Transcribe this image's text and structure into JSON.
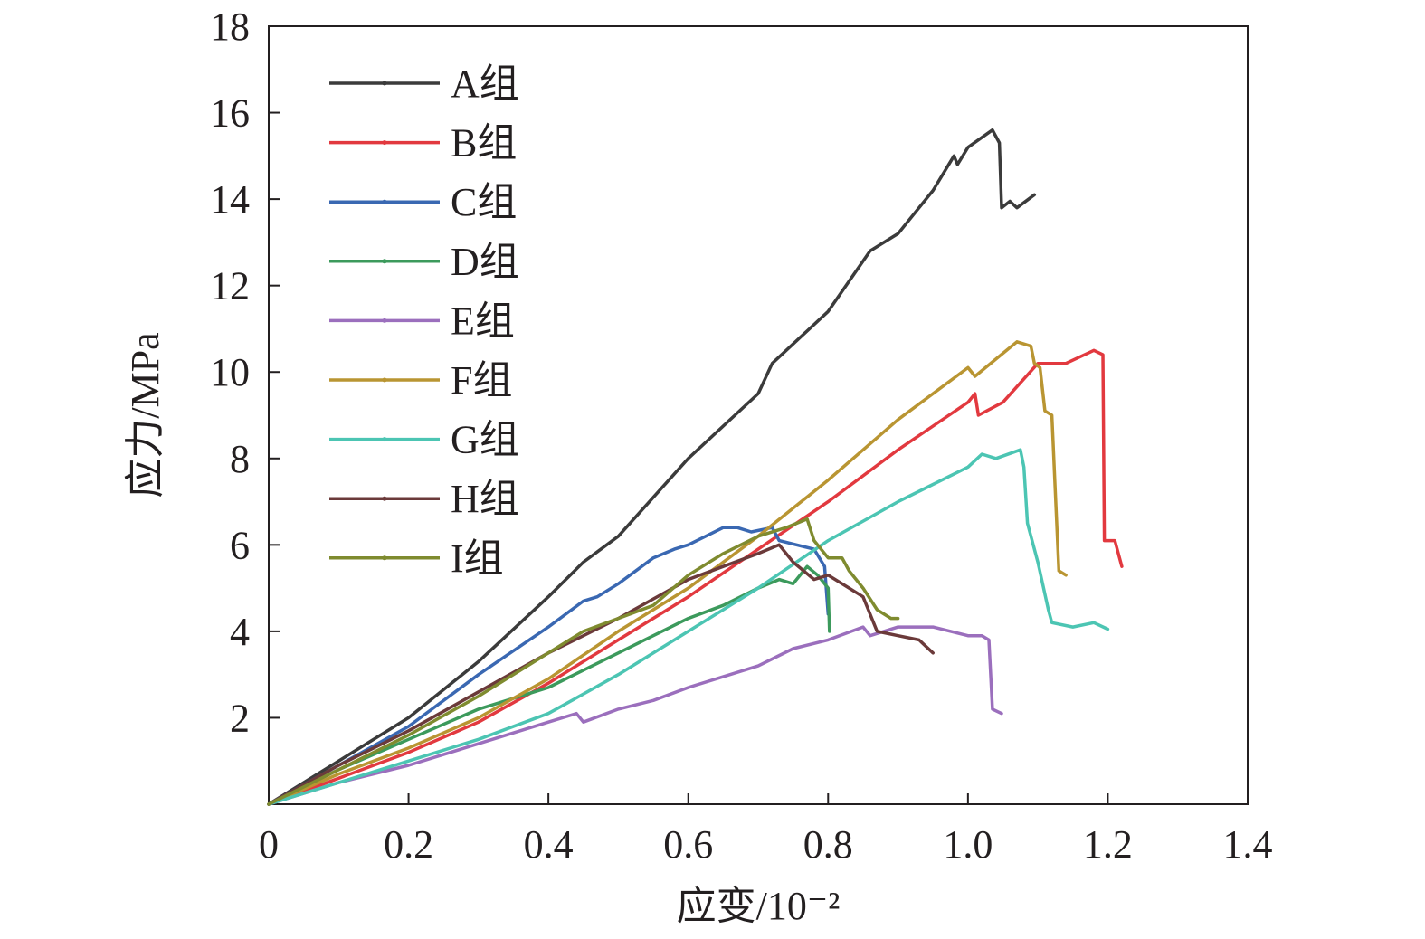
{
  "chart_data": {
    "type": "line",
    "title": "",
    "xlabel": "应变/10⁻²",
    "ylabel": "应力/MPa",
    "xlim": [
      0,
      1.4
    ],
    "ylim": [
      0,
      18
    ],
    "xticks": [
      "0",
      "0.2",
      "0.4",
      "0.6",
      "0.8",
      "1.0",
      "1.2",
      "1.4"
    ],
    "yticks": [
      "2",
      "4",
      "6",
      "8",
      "10",
      "12",
      "14",
      "16",
      "18"
    ],
    "grid": false,
    "legend_position": "top-left",
    "series": [
      {
        "name": "A组",
        "color": "#3b3b3b",
        "points": [
          [
            0,
            0
          ],
          [
            0.1,
            1.0
          ],
          [
            0.2,
            2.0
          ],
          [
            0.3,
            3.3
          ],
          [
            0.4,
            4.8
          ],
          [
            0.45,
            5.6
          ],
          [
            0.5,
            6.2
          ],
          [
            0.6,
            8.0
          ],
          [
            0.7,
            9.5
          ],
          [
            0.72,
            10.2
          ],
          [
            0.8,
            11.4
          ],
          [
            0.86,
            12.8
          ],
          [
            0.9,
            13.2
          ],
          [
            0.95,
            14.2
          ],
          [
            0.98,
            15.0
          ],
          [
            0.985,
            14.8
          ],
          [
            1.0,
            15.2
          ],
          [
            1.035,
            15.6
          ],
          [
            1.045,
            15.3
          ],
          [
            1.048,
            13.8
          ],
          [
            1.06,
            13.95
          ],
          [
            1.07,
            13.8
          ],
          [
            1.095,
            14.1
          ]
        ]
      },
      {
        "name": "B组",
        "color": "#e2393f",
        "points": [
          [
            0,
            0
          ],
          [
            0.1,
            0.6
          ],
          [
            0.2,
            1.2
          ],
          [
            0.3,
            1.9
          ],
          [
            0.4,
            2.8
          ],
          [
            0.5,
            3.8
          ],
          [
            0.6,
            4.8
          ],
          [
            0.7,
            5.9
          ],
          [
            0.8,
            7.0
          ],
          [
            0.9,
            8.2
          ],
          [
            1.0,
            9.3
          ],
          [
            1.01,
            9.5
          ],
          [
            1.015,
            9.0
          ],
          [
            1.05,
            9.3
          ],
          [
            1.1,
            10.2
          ],
          [
            1.14,
            10.2
          ],
          [
            1.18,
            10.5
          ],
          [
            1.193,
            10.4
          ],
          [
            1.195,
            6.1
          ],
          [
            1.21,
            6.1
          ],
          [
            1.22,
            5.5
          ]
        ]
      },
      {
        "name": "C组",
        "color": "#3a68b2",
        "points": [
          [
            0,
            0
          ],
          [
            0.1,
            0.9
          ],
          [
            0.2,
            1.8
          ],
          [
            0.3,
            3.0
          ],
          [
            0.4,
            4.1
          ],
          [
            0.45,
            4.7
          ],
          [
            0.47,
            4.8
          ],
          [
            0.5,
            5.1
          ],
          [
            0.55,
            5.7
          ],
          [
            0.58,
            5.9
          ],
          [
            0.6,
            6.0
          ],
          [
            0.65,
            6.4
          ],
          [
            0.67,
            6.4
          ],
          [
            0.69,
            6.3
          ],
          [
            0.72,
            6.4
          ],
          [
            0.73,
            6.1
          ],
          [
            0.78,
            5.9
          ],
          [
            0.795,
            5.5
          ],
          [
            0.8,
            4.4
          ]
        ]
      },
      {
        "name": "D组",
        "color": "#3c9a5c",
        "points": [
          [
            0,
            0
          ],
          [
            0.1,
            0.8
          ],
          [
            0.2,
            1.5
          ],
          [
            0.3,
            2.2
          ],
          [
            0.4,
            2.7
          ],
          [
            0.5,
            3.5
          ],
          [
            0.6,
            4.3
          ],
          [
            0.65,
            4.6
          ],
          [
            0.7,
            5.0
          ],
          [
            0.73,
            5.2
          ],
          [
            0.75,
            5.1
          ],
          [
            0.77,
            5.5
          ],
          [
            0.785,
            5.3
          ],
          [
            0.8,
            5.0
          ],
          [
            0.802,
            4.0
          ]
        ]
      },
      {
        "name": "E组",
        "color": "#9b6fbd",
        "points": [
          [
            0,
            0
          ],
          [
            0.1,
            0.5
          ],
          [
            0.2,
            0.9
          ],
          [
            0.3,
            1.4
          ],
          [
            0.4,
            1.9
          ],
          [
            0.44,
            2.1
          ],
          [
            0.45,
            1.9
          ],
          [
            0.5,
            2.2
          ],
          [
            0.55,
            2.4
          ],
          [
            0.6,
            2.7
          ],
          [
            0.7,
            3.2
          ],
          [
            0.75,
            3.6
          ],
          [
            0.8,
            3.8
          ],
          [
            0.85,
            4.1
          ],
          [
            0.86,
            3.9
          ],
          [
            0.9,
            4.1
          ],
          [
            0.95,
            4.1
          ],
          [
            1.0,
            3.9
          ],
          [
            1.02,
            3.9
          ],
          [
            1.03,
            3.8
          ],
          [
            1.035,
            2.2
          ],
          [
            1.048,
            2.1
          ]
        ]
      },
      {
        "name": "F组",
        "color": "#b99532",
        "points": [
          [
            0,
            0
          ],
          [
            0.1,
            0.7
          ],
          [
            0.2,
            1.3
          ],
          [
            0.3,
            2.0
          ],
          [
            0.4,
            2.9
          ],
          [
            0.5,
            4.0
          ],
          [
            0.6,
            5.0
          ],
          [
            0.7,
            6.2
          ],
          [
            0.8,
            7.5
          ],
          [
            0.9,
            8.9
          ],
          [
            1.0,
            10.1
          ],
          [
            1.01,
            9.9
          ],
          [
            1.04,
            10.3
          ],
          [
            1.07,
            10.7
          ],
          [
            1.09,
            10.6
          ],
          [
            1.095,
            10.2
          ],
          [
            1.103,
            10.1
          ],
          [
            1.11,
            9.1
          ],
          [
            1.12,
            9.0
          ],
          [
            1.13,
            5.4
          ],
          [
            1.14,
            5.3
          ]
        ]
      },
      {
        "name": "G组",
        "color": "#4cc5b3",
        "points": [
          [
            0,
            0
          ],
          [
            0.2,
            1.0
          ],
          [
            0.3,
            1.5
          ],
          [
            0.4,
            2.1
          ],
          [
            0.5,
            3.0
          ],
          [
            0.6,
            4.0
          ],
          [
            0.7,
            5.0
          ],
          [
            0.8,
            6.1
          ],
          [
            0.9,
            7.0
          ],
          [
            1.0,
            7.8
          ],
          [
            1.02,
            8.1
          ],
          [
            1.04,
            8.0
          ],
          [
            1.075,
            8.2
          ],
          [
            1.08,
            7.8
          ],
          [
            1.085,
            6.5
          ],
          [
            1.1,
            5.6
          ],
          [
            1.115,
            4.5
          ],
          [
            1.12,
            4.2
          ],
          [
            1.15,
            4.1
          ],
          [
            1.18,
            4.2
          ],
          [
            1.2,
            4.05
          ]
        ]
      },
      {
        "name": "H组",
        "color": "#6b3a3a",
        "points": [
          [
            0,
            0
          ],
          [
            0.1,
            0.9
          ],
          [
            0.2,
            1.7
          ],
          [
            0.3,
            2.6
          ],
          [
            0.4,
            3.5
          ],
          [
            0.5,
            4.3
          ],
          [
            0.6,
            5.2
          ],
          [
            0.65,
            5.5
          ],
          [
            0.7,
            5.8
          ],
          [
            0.73,
            6.0
          ],
          [
            0.75,
            5.6
          ],
          [
            0.78,
            5.2
          ],
          [
            0.8,
            5.3
          ],
          [
            0.83,
            5.0
          ],
          [
            0.85,
            4.8
          ],
          [
            0.87,
            4.0
          ],
          [
            0.9,
            3.9
          ],
          [
            0.93,
            3.8
          ],
          [
            0.95,
            3.5
          ]
        ]
      },
      {
        "name": "I组",
        "color": "#7f8b2f",
        "points": [
          [
            0,
            0
          ],
          [
            0.1,
            0.8
          ],
          [
            0.2,
            1.6
          ],
          [
            0.3,
            2.5
          ],
          [
            0.4,
            3.5
          ],
          [
            0.45,
            4.0
          ],
          [
            0.5,
            4.3
          ],
          [
            0.55,
            4.6
          ],
          [
            0.6,
            5.3
          ],
          [
            0.65,
            5.8
          ],
          [
            0.7,
            6.2
          ],
          [
            0.74,
            6.4
          ],
          [
            0.77,
            6.6
          ],
          [
            0.78,
            6.1
          ],
          [
            0.8,
            5.7
          ],
          [
            0.82,
            5.7
          ],
          [
            0.83,
            5.4
          ],
          [
            0.85,
            5.0
          ],
          [
            0.87,
            4.5
          ],
          [
            0.89,
            4.3
          ],
          [
            0.9,
            4.3
          ]
        ]
      }
    ]
  }
}
